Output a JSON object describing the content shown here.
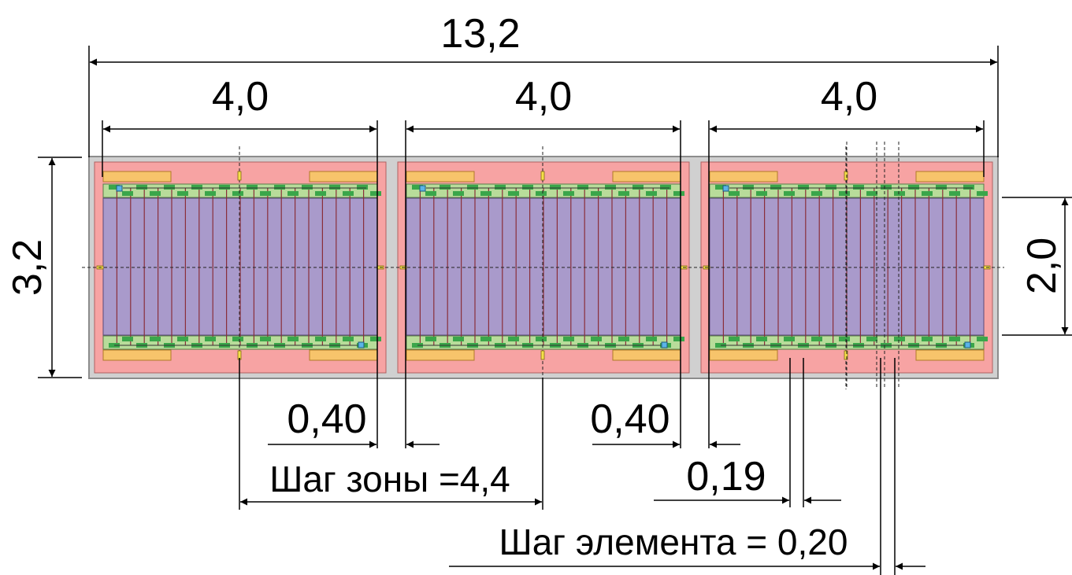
{
  "dimensions": {
    "total_width": "13,2",
    "zone_width_1": "4,0",
    "zone_width_2": "4,0",
    "zone_width_3": "4,0",
    "height": "3,2",
    "inner_height": "2,0",
    "gap_1": "0,40",
    "gap_2": "0,40",
    "element_gap": "0,19",
    "zone_pitch": "Шаг зоны =4,4",
    "element_pitch": "Шаг элемента = 0,20"
  },
  "colors": {
    "outer_frame": "#d0d0d0",
    "zone_background": "#f7a3a3",
    "element_fill": "#a99acb",
    "bus_bar": "#b8dc9a",
    "contact": "#3aa64a",
    "pad": "#f7c46b",
    "corner": "#5ab4e8",
    "separator": "#8a2f3a"
  }
}
